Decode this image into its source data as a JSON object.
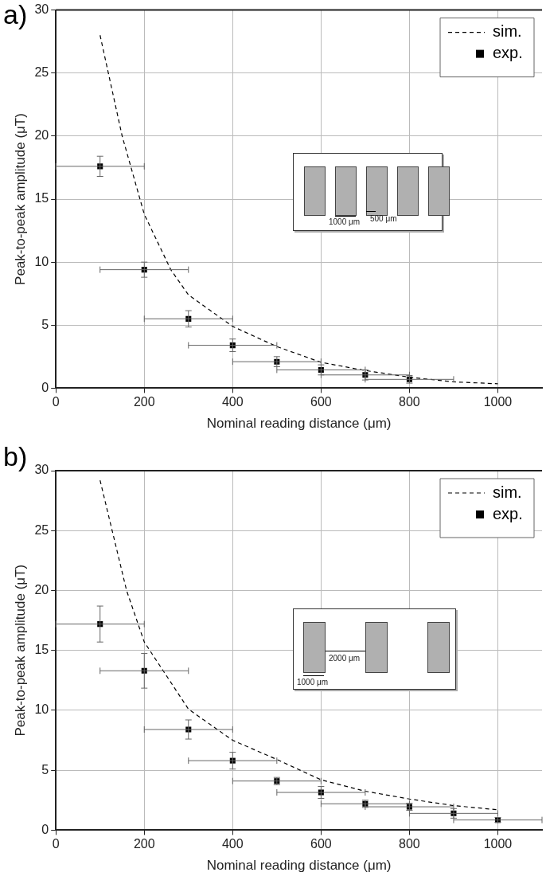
{
  "chart_data": [
    {
      "type": "scatter",
      "title": "a)",
      "xlabel": "Nominal reading distance (μm)",
      "ylabel": "Peak-to-peak amplitude (μT)",
      "xlim": [
        0,
        1100
      ],
      "ylim": [
        0,
        30
      ],
      "xticks": [
        0,
        200,
        400,
        600,
        800,
        1000
      ],
      "yticks": [
        0,
        5,
        10,
        15,
        20,
        25,
        30
      ],
      "grid": true,
      "legend": "top right",
      "annotations": [
        "1000 μm",
        "500 μm"
      ],
      "series": [
        {
          "name": "sim.",
          "type": "line",
          "color": "#000000",
          "line_style": "dashed",
          "marker": "none",
          "x": [
            100,
            150,
            200,
            260,
            300,
            400,
            500,
            600,
            700,
            800,
            900,
            1000
          ],
          "values": [
            28,
            20,
            13.8,
            9.4,
            7.4,
            4.9,
            3.3,
            2.05,
            1.4,
            0.87,
            0.5,
            0.35
          ]
        },
        {
          "name": "exp.",
          "type": "scatter",
          "color": "#000000",
          "marker": "square",
          "x": [
            100,
            200,
            300,
            400,
            500,
            600,
            700,
            800
          ],
          "values": [
            17.6,
            9.4,
            5.5,
            3.4,
            2.1,
            1.45,
            1.05,
            0.7
          ],
          "errors": [
            0.8,
            0.6,
            0.65,
            0.5,
            0.4,
            0.4,
            0.4,
            0.3
          ],
          "xerrors": [
            100,
            100,
            100,
            100,
            100,
            100,
            100,
            100
          ]
        }
      ]
    },
    {
      "type": "scatter",
      "title": "b)",
      "xlabel": "Nominal reading distance (μm)",
      "ylabel": "Peak-to-peak amplitude (μT)",
      "xlim": [
        0,
        1100
      ],
      "ylim": [
        0,
        30
      ],
      "xticks": [
        0,
        200,
        400,
        600,
        800,
        1000
      ],
      "yticks": [
        0,
        5,
        10,
        15,
        20,
        25,
        30
      ],
      "grid": true,
      "legend": "top right",
      "annotations": [
        "2000 μm",
        "1000 μm"
      ],
      "series": [
        {
          "name": "sim.",
          "type": "line",
          "color": "#000000",
          "line_style": "dashed",
          "marker": "none",
          "x": [
            100,
            160,
            200,
            300,
            400,
            500,
            600,
            700,
            800,
            900,
            1000
          ],
          "values": [
            29.2,
            20,
            15.7,
            10.1,
            7.5,
            5.9,
            4.2,
            3.25,
            2.6,
            2.05,
            1.7
          ]
        },
        {
          "name": "exp.",
          "type": "scatter",
          "color": "#000000",
          "marker": "square",
          "x": [
            100,
            200,
            300,
            400,
            500,
            600,
            700,
            800,
            900,
            1000
          ],
          "values": [
            17.2,
            13.3,
            8.4,
            5.8,
            4.1,
            3.15,
            2.2,
            1.95,
            1.4,
            0.85
          ],
          "errors": [
            1.5,
            1.45,
            0.8,
            0.7,
            0.3,
            0.5,
            0.3,
            0.3,
            0.4,
            0.2
          ],
          "xerrors": [
            100,
            100,
            100,
            100,
            100,
            100,
            100,
            100,
            100,
            100
          ]
        }
      ]
    }
  ]
}
